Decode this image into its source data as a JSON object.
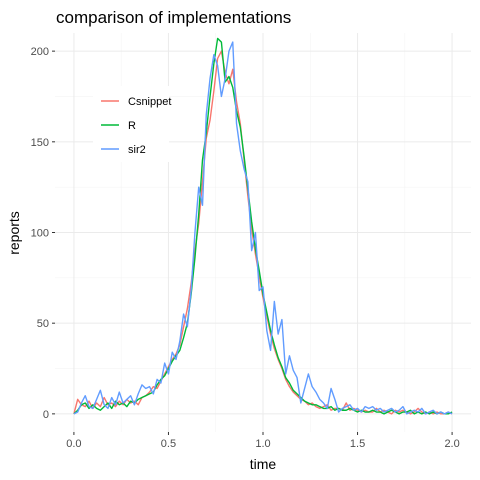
{
  "chart_data": {
    "type": "line",
    "title": "comparison of implementations",
    "xlabel": "time",
    "ylabel": "reports",
    "xlim": [
      -0.1,
      2.1
    ],
    "ylim": [
      -10,
      210
    ],
    "x_ticks": [
      0.0,
      0.5,
      1.0,
      1.5,
      2.0
    ],
    "x_tick_labels": [
      "0.0",
      "0.5",
      "1.0",
      "1.5",
      "2.0"
    ],
    "y_ticks": [
      0,
      50,
      100,
      150,
      200
    ],
    "y_tick_labels": [
      "0",
      "50",
      "100",
      "150",
      "200"
    ],
    "grid": true,
    "legend_position": "top-left",
    "x": [
      0.0,
      0.02,
      0.04,
      0.06,
      0.08,
      0.1,
      0.12,
      0.14,
      0.16,
      0.18,
      0.2,
      0.22,
      0.24,
      0.26,
      0.28,
      0.3,
      0.32,
      0.34,
      0.36,
      0.38,
      0.4,
      0.42,
      0.44,
      0.46,
      0.48,
      0.5,
      0.52,
      0.54,
      0.56,
      0.58,
      0.6,
      0.62,
      0.64,
      0.66,
      0.68,
      0.7,
      0.72,
      0.74,
      0.76,
      0.78,
      0.8,
      0.82,
      0.84,
      0.86,
      0.88,
      0.9,
      0.92,
      0.94,
      0.96,
      0.98,
      1.0,
      1.02,
      1.04,
      1.06,
      1.08,
      1.1,
      1.12,
      1.14,
      1.16,
      1.18,
      1.2,
      1.22,
      1.24,
      1.26,
      1.28,
      1.3,
      1.32,
      1.34,
      1.36,
      1.38,
      1.4,
      1.42,
      1.44,
      1.46,
      1.48,
      1.5,
      1.52,
      1.54,
      1.56,
      1.58,
      1.6,
      1.62,
      1.64,
      1.66,
      1.68,
      1.7,
      1.72,
      1.74,
      1.76,
      1.78,
      1.8,
      1.82,
      1.84,
      1.86,
      1.88,
      1.9,
      1.92,
      1.94,
      1.96,
      1.98,
      2.0
    ],
    "series": [
      {
        "name": "Csnippet",
        "color": "#F8766D",
        "values": [
          0,
          8,
          5,
          4,
          7,
          3,
          6,
          4,
          9,
          5,
          6,
          4,
          7,
          5,
          8,
          6,
          7,
          5,
          9,
          10,
          12,
          15,
          14,
          18,
          22,
          26,
          30,
          33,
          38,
          48,
          58,
          72,
          90,
          105,
          128,
          152,
          162,
          178,
          196,
          200,
          188,
          182,
          190,
          172,
          160,
          140,
          120,
          102,
          88,
          76,
          64,
          54,
          44,
          36,
          30,
          25,
          19,
          15,
          12,
          10,
          8,
          7,
          5,
          6,
          4,
          3,
          4,
          5,
          2,
          3,
          3,
          2,
          6,
          2,
          3,
          2,
          1,
          2,
          1,
          1,
          3,
          1,
          2,
          1,
          0,
          2,
          1,
          2,
          1,
          0,
          1,
          3,
          1,
          0,
          1,
          0,
          1,
          0,
          0,
          1,
          0
        ]
      },
      {
        "name": "R",
        "color": "#00BA38",
        "values": [
          0,
          2,
          5,
          6,
          3,
          5,
          3,
          2,
          4,
          6,
          3,
          7,
          5,
          6,
          4,
          7,
          6,
          8,
          9,
          10,
          11,
          12,
          16,
          19,
          21,
          25,
          29,
          32,
          35,
          42,
          50,
          66,
          86,
          110,
          140,
          155,
          175,
          193,
          207,
          205,
          183,
          186,
          180,
          167,
          158,
          142,
          124,
          106,
          91,
          79,
          66,
          56,
          46,
          38,
          31,
          26,
          20,
          17,
          13,
          11,
          9,
          7,
          6,
          5,
          5,
          4,
          3,
          3,
          4,
          2,
          3,
          2,
          2,
          3,
          2,
          1,
          2,
          1,
          1,
          2,
          1,
          1,
          0,
          1,
          2,
          1,
          0,
          1,
          1,
          2,
          0,
          1,
          0,
          1,
          0,
          1,
          0,
          1,
          0,
          0,
          1
        ]
      },
      {
        "name": "sir2",
        "color": "#619CFF",
        "values": [
          0,
          1,
          6,
          10,
          4,
          3,
          8,
          13,
          5,
          3,
          9,
          5,
          12,
          6,
          8,
          10,
          5,
          11,
          16,
          14,
          15,
          11,
          19,
          17,
          28,
          22,
          34,
          30,
          40,
          55,
          48,
          68,
          100,
          125,
          115,
          165,
          185,
          198,
          192,
          175,
          185,
          200,
          205,
          160,
          145,
          135,
          128,
          90,
          100,
          68,
          70,
          46,
          35,
          62,
          44,
          52,
          22,
          32,
          24,
          20,
          6,
          14,
          22,
          15,
          12,
          8,
          6,
          3,
          14,
          8,
          1,
          3,
          4,
          5,
          2,
          3,
          1,
          4,
          3,
          4,
          2,
          3,
          1,
          2,
          3,
          1,
          2,
          4,
          0,
          1,
          2,
          1,
          3,
          0,
          1,
          2,
          0,
          1,
          0,
          1,
          0
        ]
      }
    ]
  }
}
